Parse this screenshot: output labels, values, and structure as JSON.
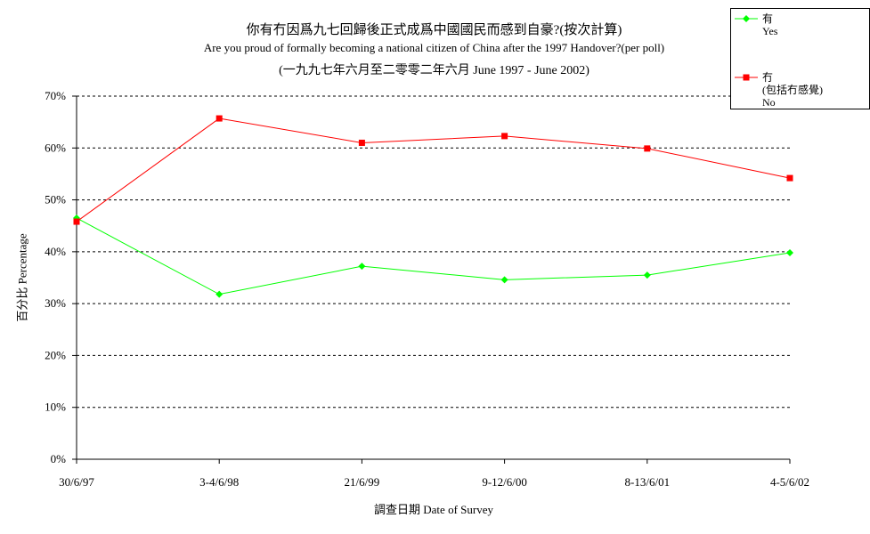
{
  "chart_data": {
    "type": "line",
    "title": "你有冇因爲九七回歸後正式成爲中國國民而感到自豪?(按次計算)",
    "subtitle": "Are you proud of formally becoming a national citizen of China after the 1997 Handover?(per poll)",
    "subtitle2": "(一九九七年六月至二零零二年六月 June 1997 - June 2002)",
    "xlabel": "調查日期 Date of Survey",
    "ylabel": "百分比 Percentage",
    "categories": [
      "30/6/97",
      "3-4/6/98",
      "21/6/99",
      "9-12/6/00",
      "8-13/6/01",
      "4-5/6/02"
    ],
    "y_ticks": [
      "0%",
      "10%",
      "20%",
      "30%",
      "40%",
      "50%",
      "60%",
      "70%"
    ],
    "ylim": [
      0,
      70
    ],
    "grid": true,
    "legend_position": "top-right",
    "series": [
      {
        "name": "有\nYes",
        "color": "#00ff00",
        "marker": "diamond",
        "values": [
          46.5,
          31.8,
          37.2,
          34.6,
          35.5,
          39.8
        ]
      },
      {
        "name": "冇\n(包括冇感覺)\nNo",
        "color": "#ff0000",
        "marker": "square",
        "values": [
          45.8,
          65.7,
          61.0,
          62.3,
          59.9,
          54.2
        ]
      }
    ]
  }
}
